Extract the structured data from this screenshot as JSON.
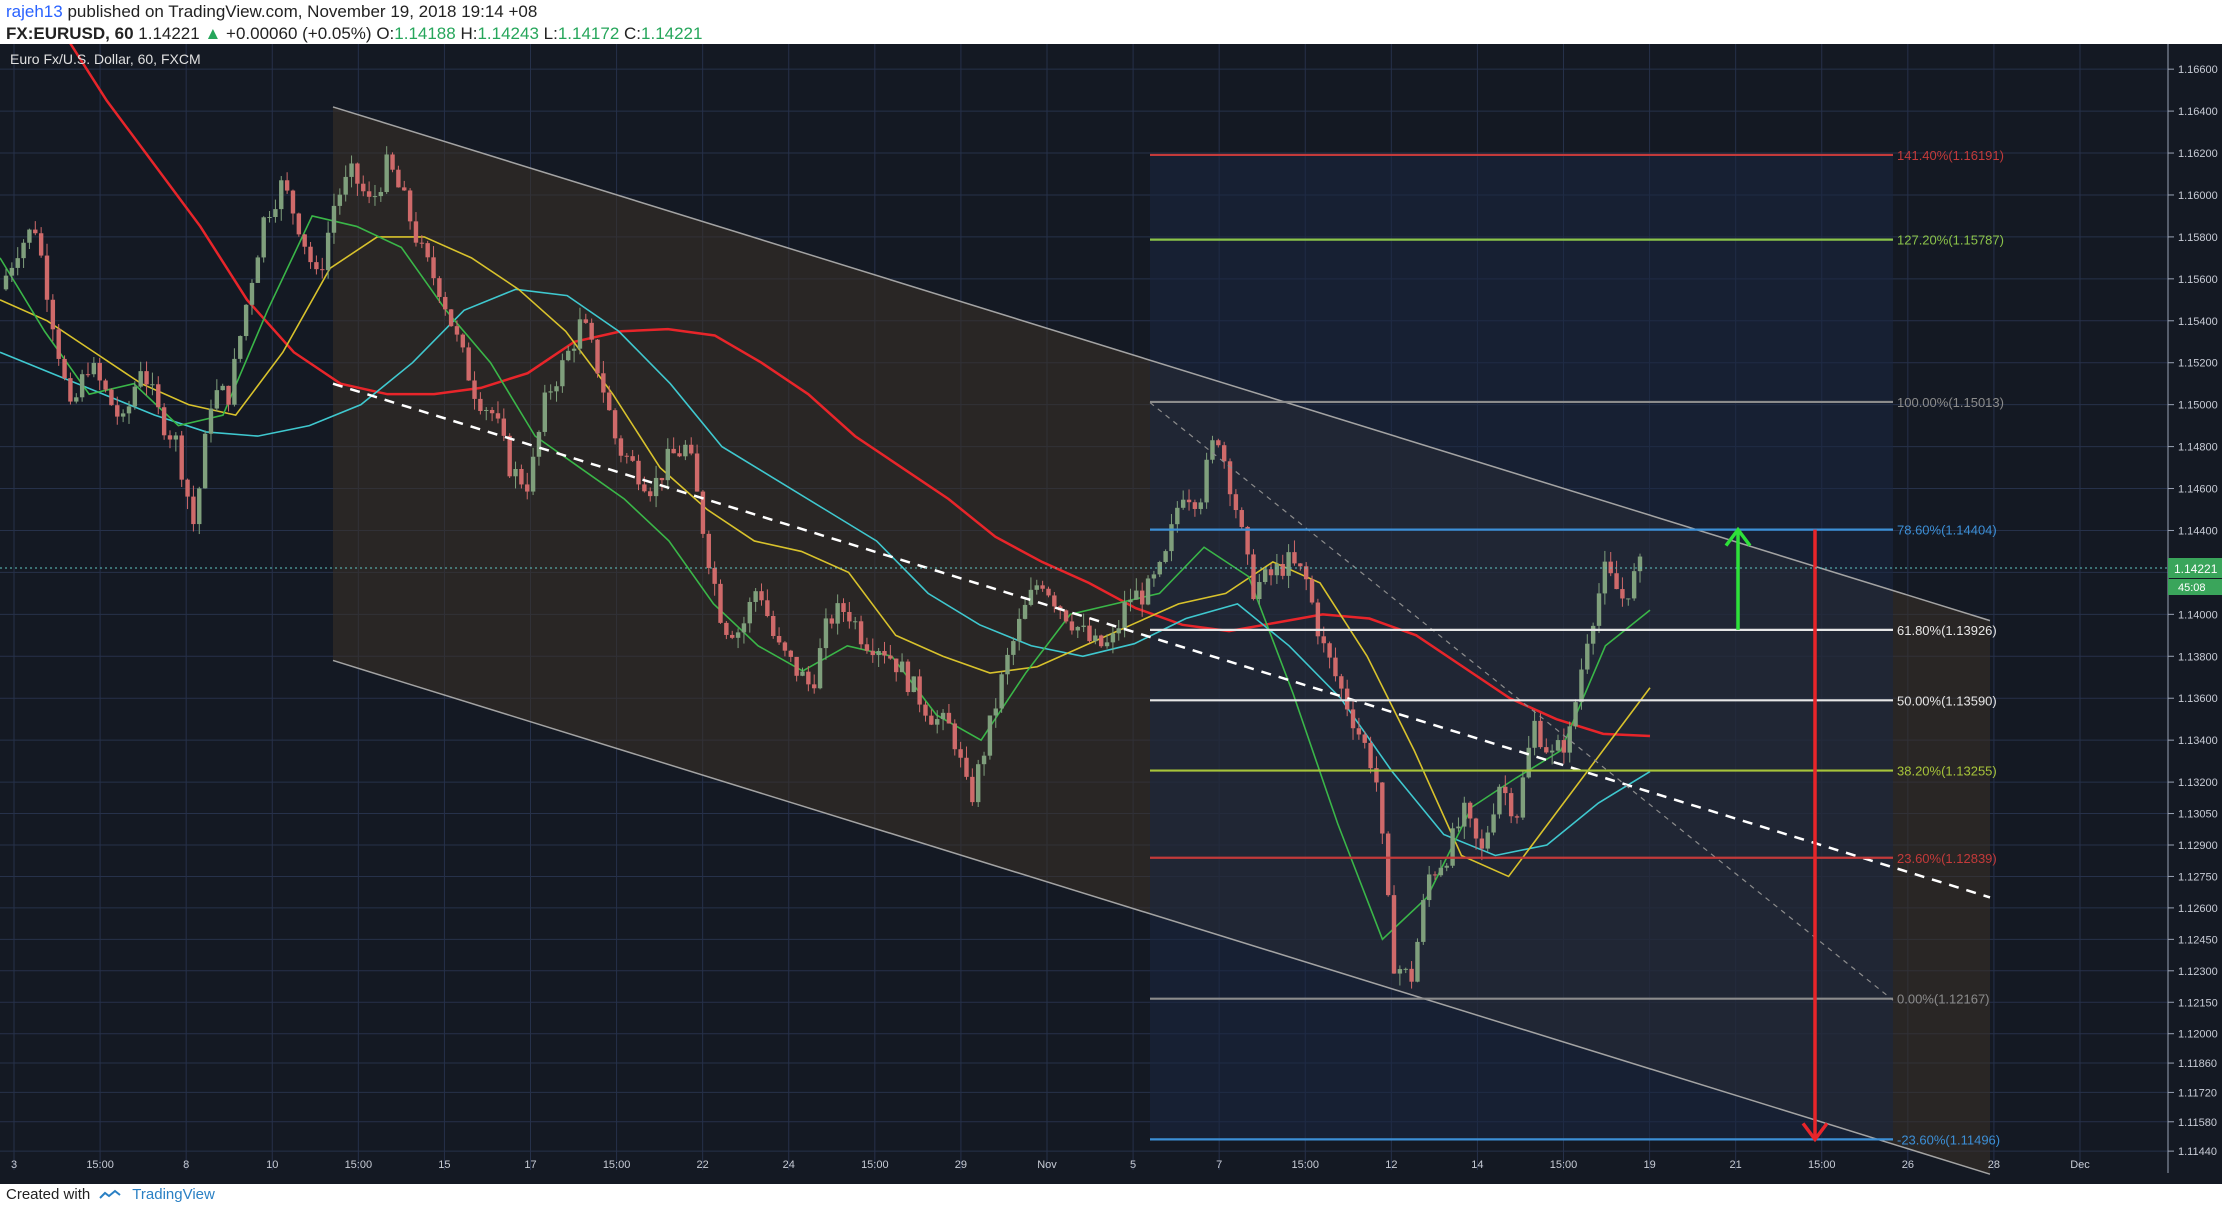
{
  "header": {
    "user": "rajeh13",
    "published": "published on TradingView.com, November 19, 2018 19:14 +08",
    "symbol": "FX:EURUSD, 60",
    "last": "1.14221",
    "change": "+0.00060 (+0.05%)",
    "o_label": "O:",
    "o": "1.14188",
    "h_label": "H:",
    "h": "1.14243",
    "l_label": "L:",
    "l": "1.14172",
    "c_label": "C:",
    "c": "1.14221"
  },
  "footer": {
    "created": "Created with",
    "brand": "TradingView"
  },
  "colors": {
    "chart_bg": "#141923",
    "grid": "#26314a",
    "candle_up": "#7f9f7c",
    "candle_down": "#cf6a6a",
    "ma_red": "#e8252a",
    "ma_cyan": "#3fc8cf",
    "ma_yellow": "#d8c22c",
    "ma_green": "#3ab648",
    "channel": "#a3a3a3",
    "fib_zone": "#1a2742",
    "price_tag": "#3aa55b"
  },
  "chart_data": {
    "type": "candlestick",
    "title": "Euro Fx/U.S. Dollar, 60, FXCM",
    "ylim": [
      1.1135,
      1.1672
    ],
    "y_ticks": [
      "1.16600",
      "1.16400",
      "1.16200",
      "1.16000",
      "1.15800",
      "1.15600",
      "1.15400",
      "1.15200",
      "1.15000",
      "1.14800",
      "1.14600",
      "1.14400",
      "1.14200",
      "1.14000",
      "1.13800",
      "1.13600",
      "1.13400",
      "1.13200",
      "1.13050",
      "1.12900",
      "1.12750",
      "1.12600",
      "1.12450",
      "1.12300",
      "1.12150",
      "1.12000",
      "1.11860",
      "1.11720",
      "1.11580",
      "1.11440"
    ],
    "x_ticks": [
      "3",
      "15:00",
      "8",
      "10",
      "15:00",
      "15",
      "17",
      "15:00",
      "22",
      "24",
      "15:00",
      "29",
      "Nov",
      "5",
      "7",
      "15:00",
      "12",
      "14",
      "15:00",
      "19",
      "21",
      "15:00",
      "26",
      "28",
      "Dec"
    ],
    "current_price": "1.14221",
    "countdown": "45:08",
    "price_path": [
      1.1555,
      1.1575,
      1.1585,
      1.154,
      1.1495,
      1.152,
      1.1505,
      1.149,
      1.152,
      1.1495,
      1.1482,
      1.1442,
      1.1505,
      1.1505,
      1.155,
      1.159,
      1.1605,
      1.1585,
      1.1558,
      1.1598,
      1.161,
      1.1595,
      1.1615,
      1.1595,
      1.157,
      1.1555,
      1.1528,
      1.1505,
      1.1495,
      1.1468,
      1.1462,
      1.1505,
      1.152,
      1.154,
      1.1515,
      1.148,
      1.147,
      1.146,
      1.1475,
      1.148,
      1.1435,
      1.1395,
      1.1392,
      1.1415,
      1.1385,
      1.1375,
      1.1365,
      1.1398,
      1.1403,
      1.1388,
      1.1385,
      1.1375,
      1.1362,
      1.135,
      1.1345,
      1.131,
      1.1342,
      1.1375,
      1.14,
      1.1418,
      1.1405,
      1.1395,
      1.1385,
      1.1385,
      1.1408,
      1.141,
      1.1423,
      1.146,
      1.1455,
      1.1488,
      1.1455,
      1.1412,
      1.1418,
      1.1425,
      1.1418,
      1.1385,
      1.1365,
      1.1345,
      1.1325,
      1.1235,
      1.1225,
      1.1275,
      1.1285,
      1.1305,
      1.1285,
      1.132,
      1.1305,
      1.1348,
      1.1332,
      1.1342,
      1.139,
      1.142,
      1.1408,
      1.1422
    ],
    "indicators": [
      {
        "name": "MA red",
        "values": [
          1.168,
          1.1645,
          1.1615,
          1.1585,
          1.155,
          1.1525,
          1.151,
          1.1505,
          1.1505,
          1.1508,
          1.1515,
          1.153,
          1.1535,
          1.1536,
          1.1533,
          1.152,
          1.1505,
          1.1485,
          1.147,
          1.1455,
          1.1437,
          1.1425,
          1.1415,
          1.1403,
          1.1395,
          1.1392,
          1.1396,
          1.14,
          1.1398,
          1.139,
          1.1375,
          1.136,
          1.135,
          1.1343,
          1.1342
        ]
      },
      {
        "name": "MA cyan",
        "values": [
          1.1525,
          1.1515,
          1.1505,
          1.1495,
          1.1487,
          1.1485,
          1.149,
          1.15,
          1.152,
          1.1545,
          1.1555,
          1.1552,
          1.1535,
          1.151,
          1.148,
          1.1465,
          1.145,
          1.1435,
          1.141,
          1.1395,
          1.1385,
          1.138,
          1.1386,
          1.1398,
          1.1405,
          1.1385,
          1.136,
          1.1325,
          1.1295,
          1.1285,
          1.129,
          1.131,
          1.1325
        ]
      },
      {
        "name": "MA yellow",
        "values": [
          1.155,
          1.154,
          1.1525,
          1.151,
          1.15,
          1.1495,
          1.1525,
          1.1565,
          1.158,
          1.158,
          1.157,
          1.1555,
          1.1535,
          1.1505,
          1.147,
          1.145,
          1.1435,
          1.143,
          1.142,
          1.139,
          1.138,
          1.1372,
          1.1375,
          1.1385,
          1.1395,
          1.1405,
          1.141,
          1.1425,
          1.1415,
          1.138,
          1.1335,
          1.1285,
          1.1275,
          1.1305,
          1.1335,
          1.1365
        ]
      },
      {
        "name": "MA green",
        "values": [
          1.157,
          1.1535,
          1.1505,
          1.151,
          1.149,
          1.1495,
          1.1545,
          1.159,
          1.1585,
          1.1575,
          1.1545,
          1.152,
          1.1485,
          1.147,
          1.1455,
          1.1435,
          1.1405,
          1.1385,
          1.1373,
          1.1385,
          1.138,
          1.1352,
          1.134,
          1.1372,
          1.14,
          1.1405,
          1.141,
          1.1432,
          1.1418,
          1.1362,
          1.13,
          1.1245,
          1.1265,
          1.1308,
          1.1322,
          1.1335,
          1.1385,
          1.1402
        ]
      }
    ],
    "channel": {
      "upper": [
        [
          1.1642,
          1.1397
        ]
      ],
      "lower": [
        [
          1.1378,
          1.1133
        ]
      ]
    },
    "fib_levels": [
      {
        "pct": "141.40%",
        "value": 1.16191,
        "label": "141.40%(1.16191)",
        "color": "#c33a3a"
      },
      {
        "pct": "127.20%",
        "value": 1.15787,
        "label": "127.20%(1.15787)",
        "color": "#8bc34a"
      },
      {
        "pct": "100.00%",
        "value": 1.15013,
        "label": "100.00%(1.15013)",
        "color": "#8c8c8c"
      },
      {
        "pct": "78.60%",
        "value": 1.14404,
        "label": "78.60%(1.14404)",
        "color": "#3c8fd6"
      },
      {
        "pct": "61.80%",
        "value": 1.13926,
        "label": "61.80%(1.13926)",
        "color": "#e6e6e6"
      },
      {
        "pct": "50.00%",
        "value": 1.1359,
        "label": "50.00%(1.13590)",
        "color": "#e6e6e6"
      },
      {
        "pct": "38.20%",
        "value": 1.13255,
        "label": "38.20%(1.13255)",
        "color": "#a7c43a"
      },
      {
        "pct": "23.60%",
        "value": 1.12839,
        "label": "23.60%(1.12839)",
        "color": "#c33a3a"
      },
      {
        "pct": "0.00%",
        "value": 1.12167,
        "label": "0.00%(1.12167)",
        "color": "#8c8c8c"
      },
      {
        "pct": "-23.60%",
        "value": 1.11496,
        "label": "-23.60%(1.11496)",
        "color": "#3c8fd6"
      }
    ],
    "arrows": [
      {
        "direction": "up",
        "from": 1.13926,
        "to": 1.14404,
        "color": "#2ee03a"
      },
      {
        "direction": "down",
        "from": 1.14404,
        "to": 1.11496,
        "color": "#e8252a"
      }
    ],
    "grid": true
  }
}
